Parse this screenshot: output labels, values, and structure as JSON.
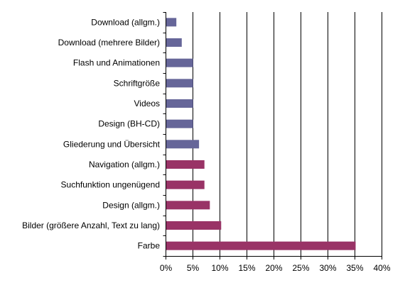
{
  "chart_data": {
    "type": "bar",
    "orientation": "horizontal",
    "categories": [
      "Download (allgm.)",
      "Download (mehrere Bilder)",
      "Flash und Animationen",
      "Schriftgröße",
      "Videos",
      "Design (BH-CD)",
      "Gliederung und Übersicht",
      "Navigation (allgm.)",
      "Suchfunktion ungenügend",
      "Design (allgm.)",
      "Bilder (größere Anzahl, Text zu lang)",
      "Farbe"
    ],
    "values": [
      2.0,
      3.0,
      5.1,
      5.1,
      5.1,
      5.1,
      6.2,
      7.2,
      7.2,
      8.2,
      10.3,
      35.2
    ],
    "bar_colors": [
      "#666699",
      "#666699",
      "#666699",
      "#666699",
      "#666699",
      "#666699",
      "#666699",
      "#993366",
      "#993366",
      "#993366",
      "#993366",
      "#993366"
    ],
    "x_ticks": [
      "0%",
      "5%",
      "10%",
      "15%",
      "20%",
      "25%",
      "30%",
      "35%",
      "40%"
    ],
    "xlim": [
      0,
      40
    ],
    "grid": true,
    "legend": "none"
  }
}
